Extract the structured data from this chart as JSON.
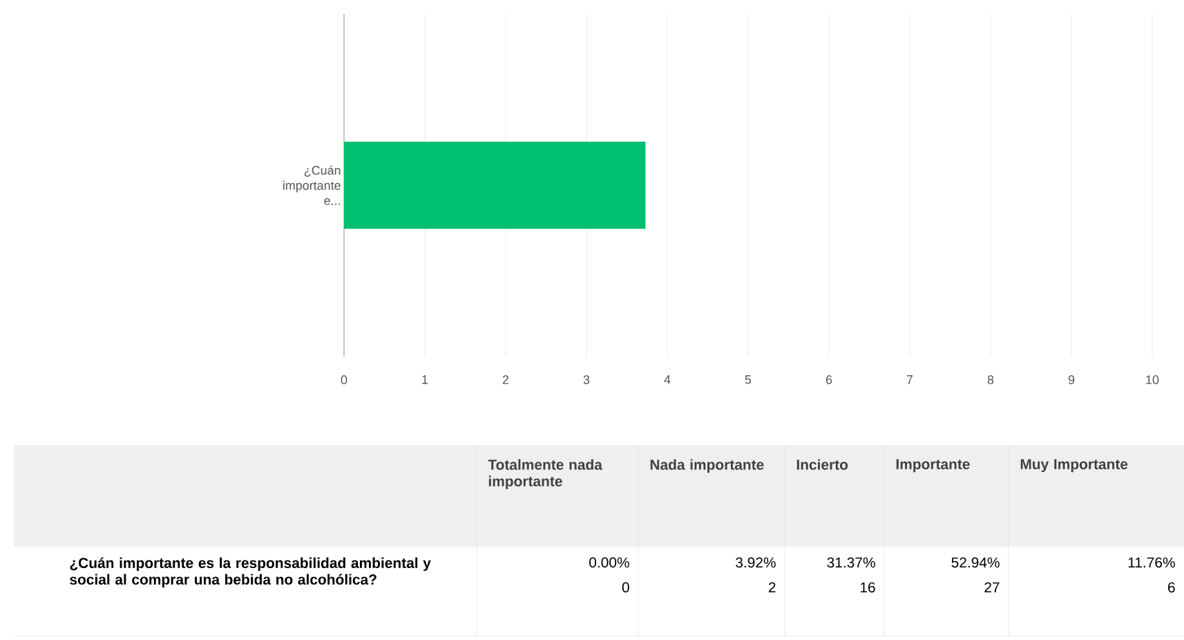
{
  "chart_data": {
    "type": "bar",
    "orientation": "horizontal",
    "categories": [
      "¿Cuán importante e..."
    ],
    "values": [
      3.73
    ],
    "color": "#00bf6f",
    "xlim": [
      0,
      10
    ],
    "xticks": [
      0,
      1,
      2,
      3,
      4,
      5,
      6,
      7,
      8,
      9,
      10
    ],
    "grid": "x",
    "annotations": [
      "Totalmente nada importante",
      "Nada importante",
      "Incierto",
      "Importante",
      "Muy Importante",
      "¿Cuán importante es la responsabilidad ambiental y social al comprar una bebida no alcohólica?",
      "0.00%",
      "3.92%",
      "31.37%",
      "52.94%",
      "11.76%",
      "0",
      "2",
      "16",
      "27",
      "6"
    ]
  }
}
